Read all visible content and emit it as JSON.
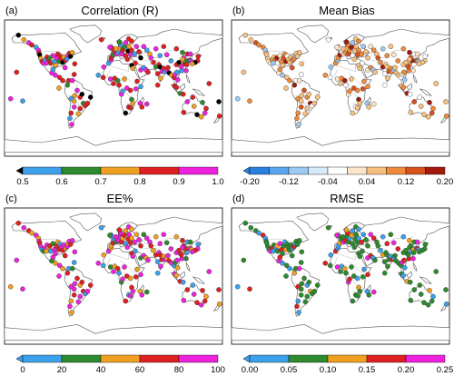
{
  "panels": [
    {
      "label": "(a)",
      "title": "Correlation (R)",
      "colorbar": {
        "type": "discrete",
        "colors": [
          "#3da0ea",
          "#2d8a2d",
          "#f0a020",
          "#e02020",
          "#ee22dd"
        ],
        "under_color": "#000000",
        "ticks": [
          "0.5",
          "0.6",
          "0.7",
          "0.8",
          "0.9",
          "1.0"
        ]
      },
      "dot_palette": [
        "#e02020",
        "#ee22dd",
        "#e02020",
        "#ee22dd",
        "#f0a020",
        "#2d8a2d",
        "#3da0ea",
        "#000000",
        "#e02020",
        "#ee22dd"
      ]
    },
    {
      "label": "(b)",
      "title": "Mean Bias",
      "colorbar": {
        "type": "diverging",
        "colors": [
          "#2a7fe0",
          "#5aa7ee",
          "#9ccaf4",
          "#d6ebfa",
          "#ffffff",
          "#fde6c8",
          "#f8c07f",
          "#ef8a3a",
          "#d8501c",
          "#a11a0c"
        ],
        "ticks": [
          "-0.20",
          "-0.12",
          "-0.04",
          "0.04",
          "0.12",
          "0.20"
        ]
      },
      "dot_palette": [
        "#f8c07f",
        "#ef8a3a",
        "#fde6c8",
        "#f8c07f",
        "#d8501c",
        "#ffffff",
        "#9ccaf4",
        "#f8c07f",
        "#a11a0c",
        "#ef8a3a"
      ]
    },
    {
      "label": "(c)",
      "title": "EE%",
      "colorbar": {
        "type": "discrete",
        "colors": [
          "#3da0ea",
          "#2d8a2d",
          "#f0a020",
          "#e02020",
          "#ee22dd"
        ],
        "ticks": [
          "0",
          "20",
          "40",
          "60",
          "80",
          "100"
        ]
      },
      "dot_palette": [
        "#ee22dd",
        "#e02020",
        "#ee22dd",
        "#e02020",
        "#f0a020",
        "#2d8a2d",
        "#ee22dd",
        "#e02020",
        "#3da0ea",
        "#f0a020"
      ]
    },
    {
      "label": "(d)",
      "title": "RMSE",
      "colorbar": {
        "type": "discrete",
        "colors": [
          "#3da0ea",
          "#2d8a2d",
          "#f0a020",
          "#e02020",
          "#ee22dd"
        ],
        "ticks": [
          "0.00",
          "0.05",
          "0.10",
          "0.15",
          "0.20",
          "0.25"
        ]
      },
      "dot_palette": [
        "#2d8a2d",
        "#2d8a2d",
        "#3da0ea",
        "#2d8a2d",
        "#f0a020",
        "#e02020",
        "#2d8a2d",
        "#3da0ea",
        "#ee22dd",
        "#2d8a2d"
      ]
    }
  ]
}
